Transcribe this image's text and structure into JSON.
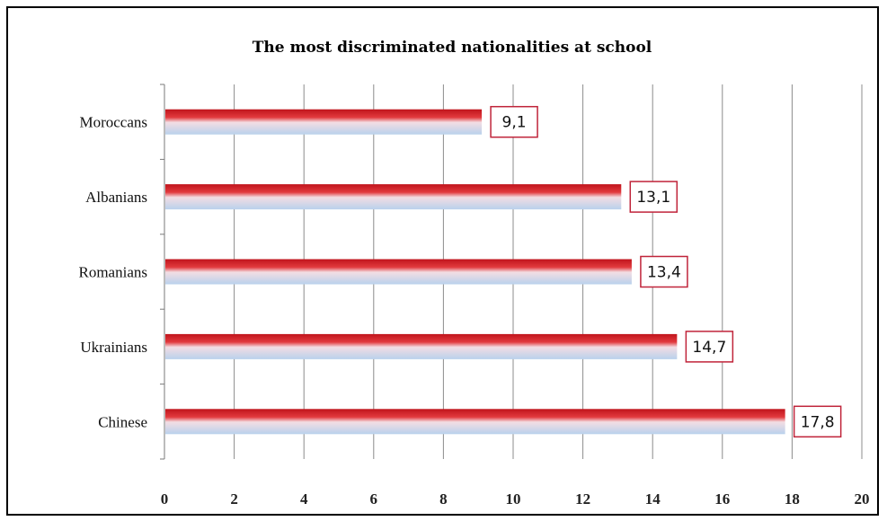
{
  "chart_data": {
    "type": "bar",
    "orientation": "horizontal",
    "title": "The most discriminated nationalities at school",
    "categories": [
      "Moroccans",
      "Albanians",
      "Romanians",
      "Ukrainians",
      "Chinese"
    ],
    "values": [
      9.1,
      13.1,
      13.4,
      14.7,
      17.8
    ],
    "value_labels": [
      "9,1",
      "13,1",
      "13,4",
      "14,7",
      "17,8"
    ],
    "xlim": [
      0,
      20
    ],
    "x_ticks": [
      0,
      2,
      4,
      6,
      8,
      10,
      12,
      14,
      16,
      18,
      20
    ],
    "xlabel": "",
    "ylabel": "",
    "grid": "vertical",
    "legend": "none",
    "colors": {
      "bar_top": "#c0141c",
      "bar_bottom": "#b9d1ec",
      "label_border": "#c0243a",
      "grid": "#8c8c8c"
    }
  }
}
